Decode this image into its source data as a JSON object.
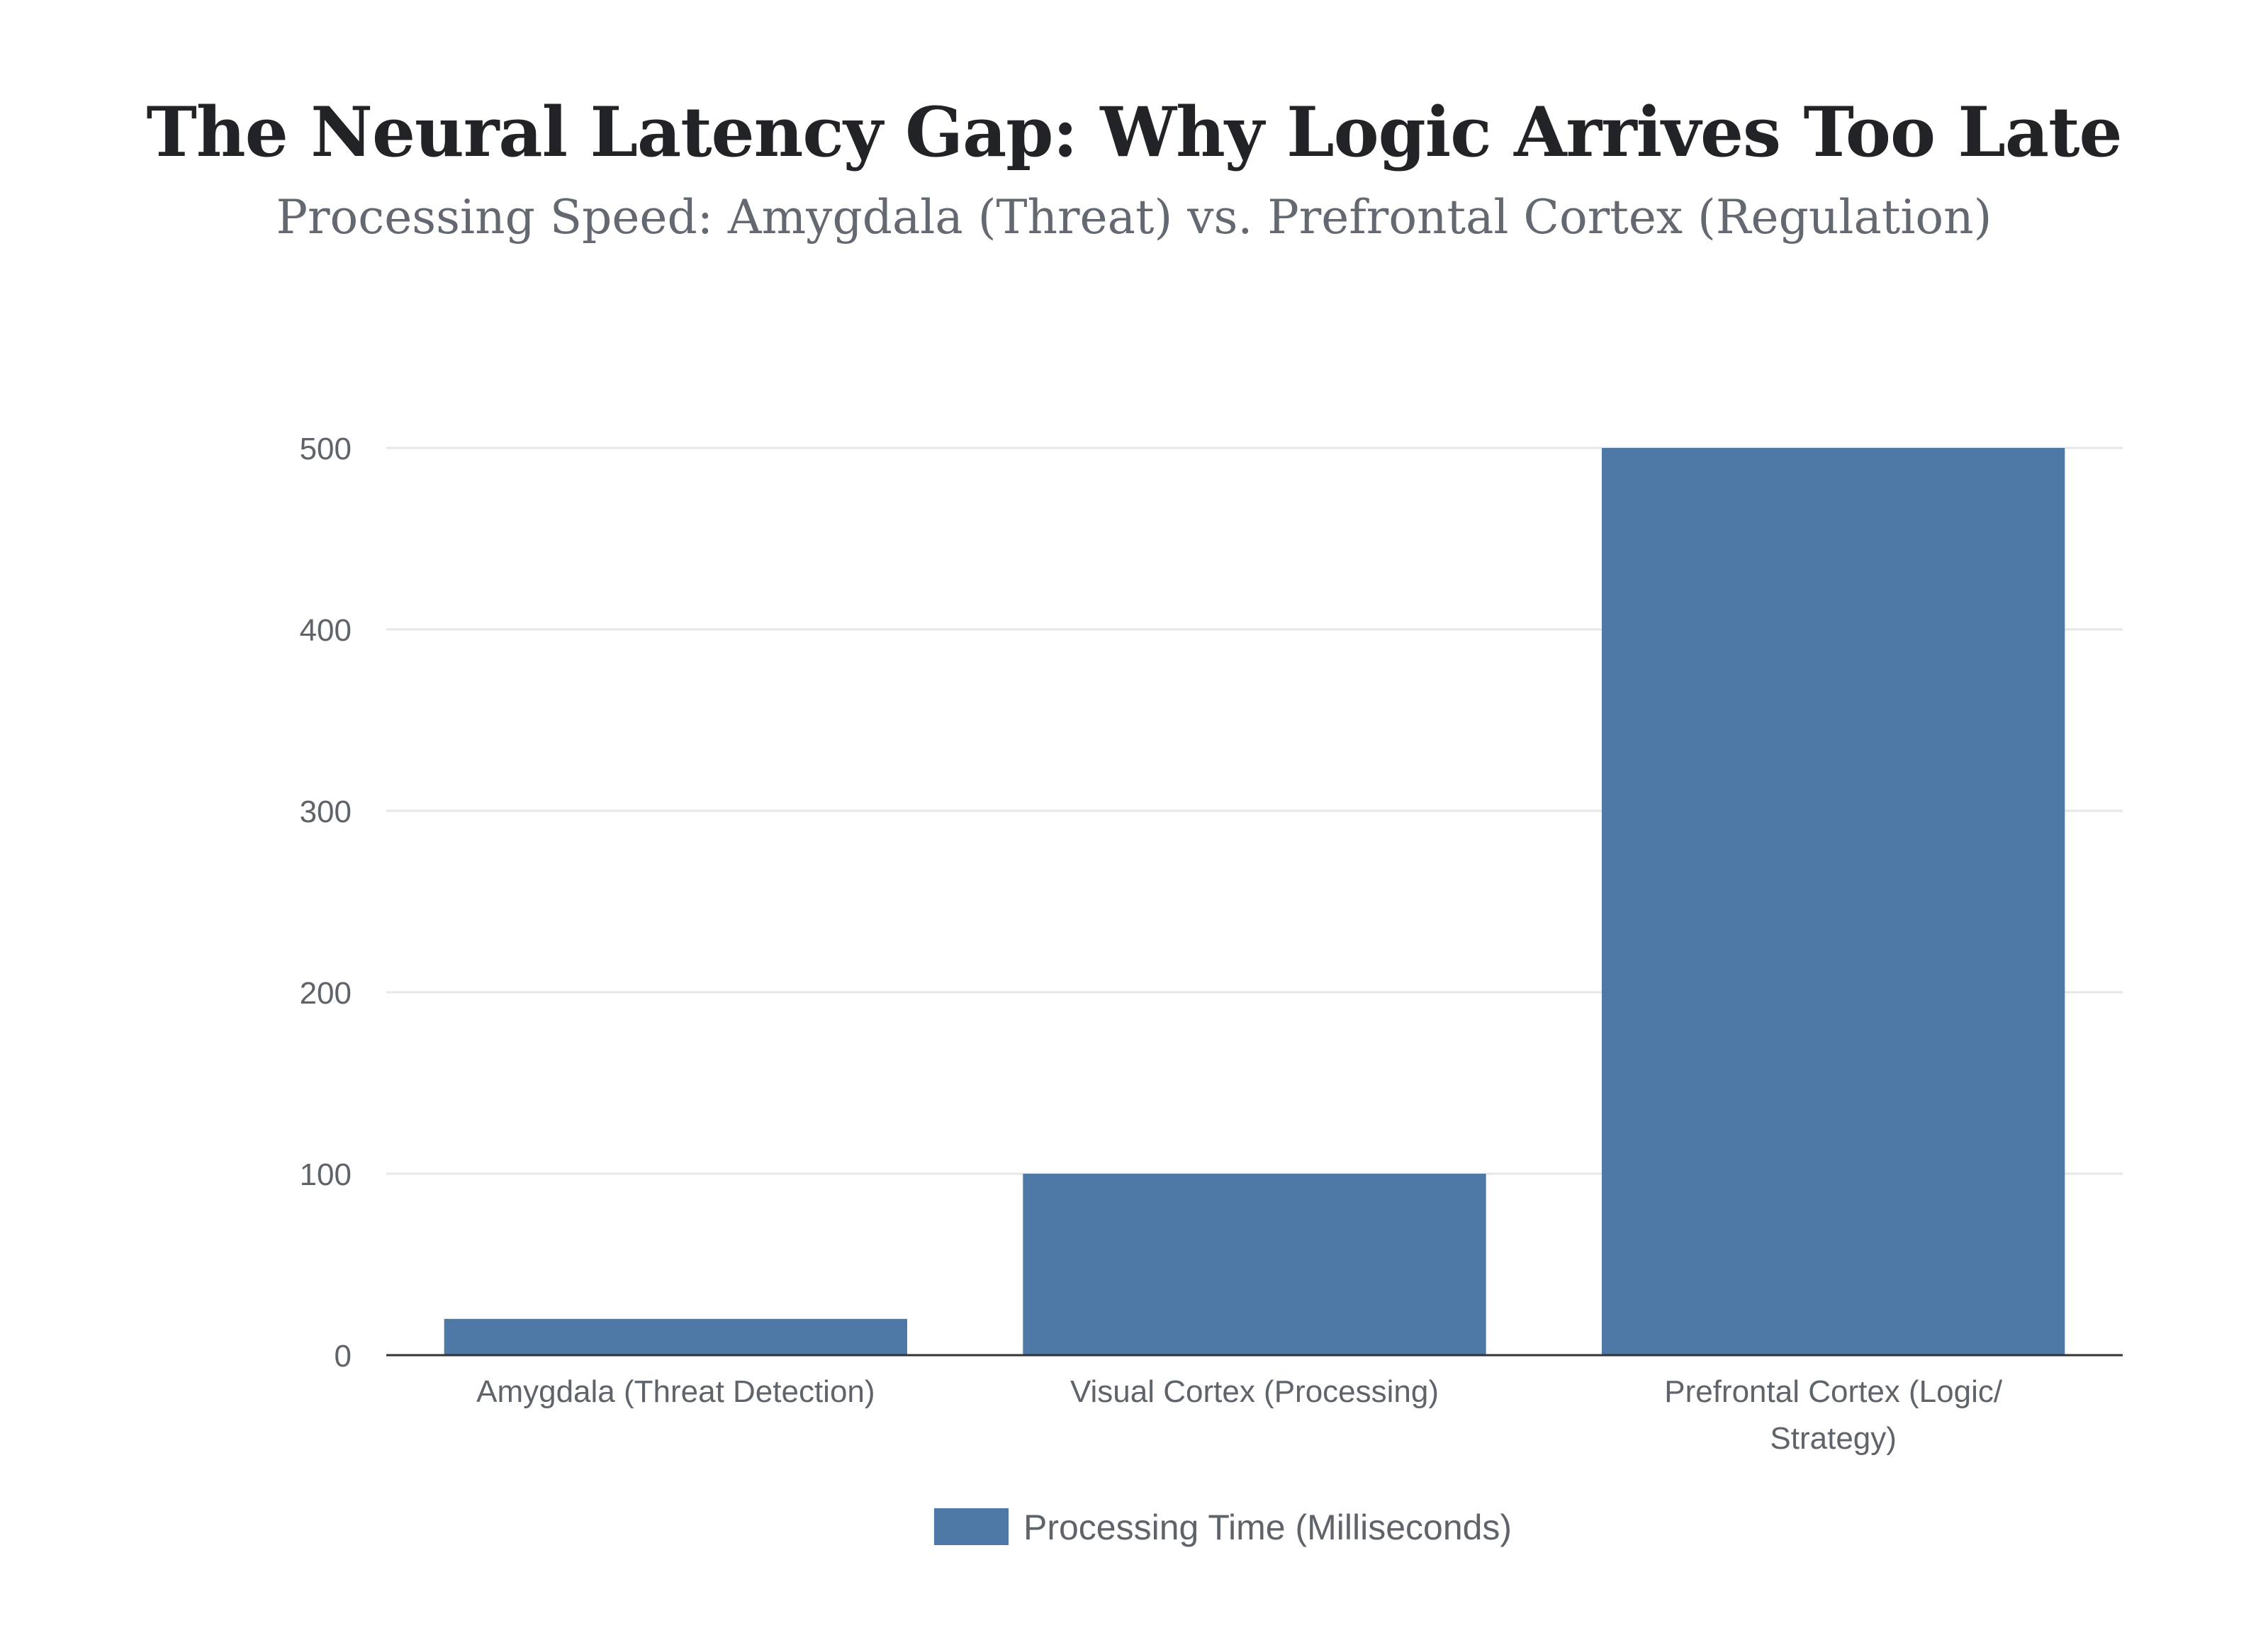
{
  "chart_data": {
    "type": "bar",
    "title": "The Neural Latency Gap: Why Logic Arrives Too Late",
    "subtitle": "Processing Speed: Amygdala (Threat) vs. Prefrontal Cortex (Regulation)",
    "categories": [
      [
        "Amygdala (Threat Detection)"
      ],
      [
        "Visual Cortex (Processing)"
      ],
      [
        "Prefrontal Cortex (Logic/",
        "Strategy)"
      ]
    ],
    "series": [
      {
        "name": "Processing Time (Milliseconds)",
        "values": [
          20,
          100,
          500
        ],
        "color": "#4e78a6"
      }
    ],
    "ylim": [
      0,
      500
    ],
    "yticks": [
      0,
      100,
      200,
      300,
      400,
      500
    ],
    "xlabel": "",
    "ylabel": "",
    "grid": true,
    "legend_position": "bottom-center"
  }
}
